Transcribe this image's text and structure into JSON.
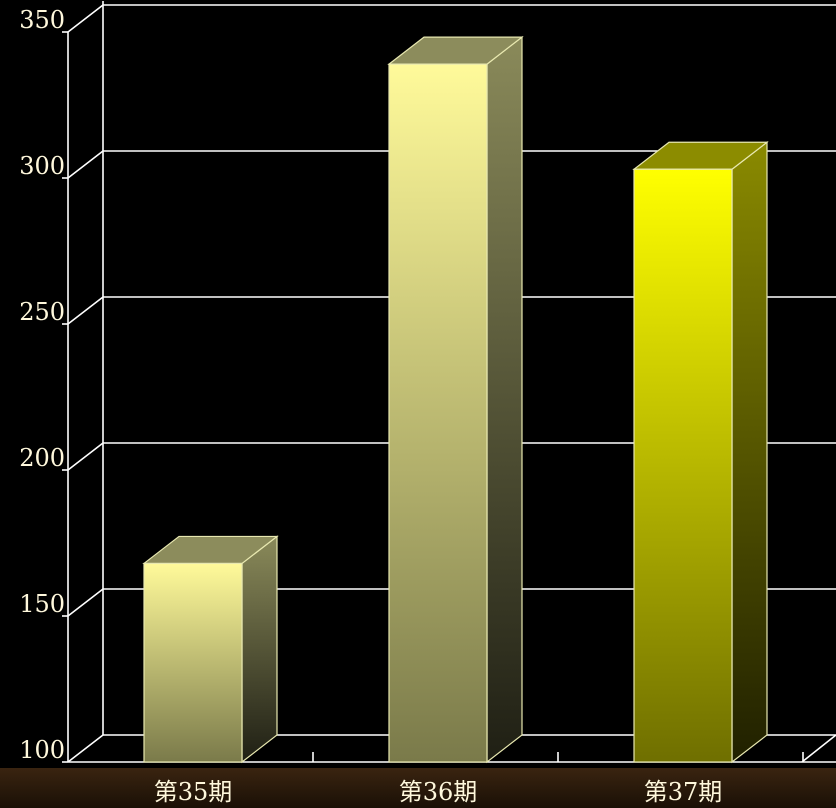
{
  "chart_data": {
    "type": "bar",
    "categories": [
      "第35期",
      "第36期",
      "第37期"
    ],
    "values": [
      168,
      339,
      303
    ],
    "ylim": [
      100,
      350
    ],
    "yticks": [
      100,
      150,
      200,
      250,
      300,
      350
    ],
    "grid": true,
    "style": "3d",
    "colors": {
      "background": "#000000",
      "floor_band": "#2a1a0a",
      "axis_line": "#ffffff",
      "text": "#fff8dc",
      "bar_light": "#fffa9a",
      "bar_light_bottom": "#7a7a4a",
      "bar_bright": "#ffff00",
      "bar_bright_bottom": "#7a7a00"
    }
  }
}
